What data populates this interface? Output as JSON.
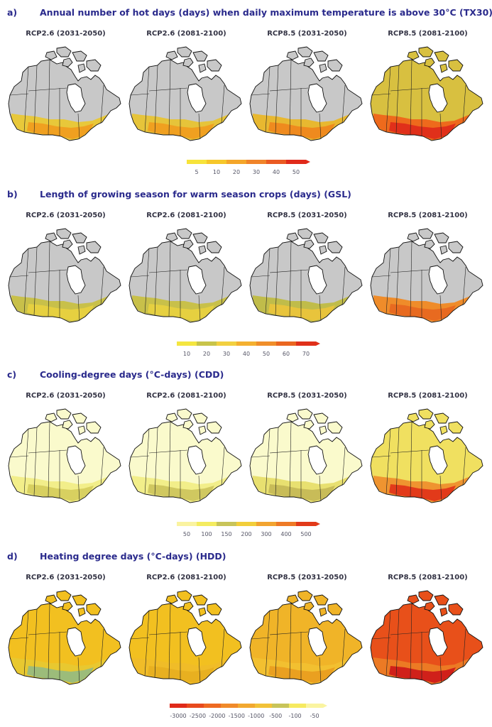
{
  "sections": [
    {
      "letter": "a)",
      "title": "Annual number of hot days (days) when daily maximum temperature is above 30°C (TX30)",
      "maps": [
        {
          "label": "RCP2.6 (2031-2050)",
          "base": "#c8c8c8",
          "south": "#e8c83a",
          "core": "#f0a020"
        },
        {
          "label": "RCP2.6 (2081-2100)",
          "base": "#c8c8c8",
          "south": "#e6c43a",
          "core": "#f0a020"
        },
        {
          "label": "RCP8.5 (2031-2050)",
          "base": "#c8c8c8",
          "south": "#e8b830",
          "core": "#ef8a1e"
        },
        {
          "label": "RCP8.5 (2081-2100)",
          "base": "#d8c040",
          "south": "#ee6a1c",
          "core": "#e0301a"
        }
      ],
      "legend": {
        "ticks": [
          "5",
          "10",
          "20",
          "30",
          "40",
          "50"
        ],
        "colors": [
          "#f7e33a",
          "#f6c72a",
          "#f4a62a",
          "#f0842a",
          "#ea5a22",
          "#e02a1a"
        ]
      }
    },
    {
      "letter": "b)",
      "title": "Length of growing season for warm season crops (days) (GSL)",
      "maps": [
        {
          "label": "RCP2.6 (2031-2050)",
          "base": "#c8c8c8",
          "south": "#c8c04a",
          "core": "#e6d040"
        },
        {
          "label": "RCP2.6 (2081-2100)",
          "base": "#c8c8c8",
          "south": "#c8c04a",
          "core": "#e6d040"
        },
        {
          "label": "RCP8.5 (2031-2050)",
          "base": "#c8c8c8",
          "south": "#c0bc4a",
          "core": "#e8c43c"
        },
        {
          "label": "RCP8.5 (2081-2100)",
          "base": "#c8c8c8",
          "south": "#ef8c2a",
          "core": "#e86a20"
        }
      ],
      "legend": {
        "ticks": [
          "10",
          "20",
          "30",
          "40",
          "50",
          "60",
          "70"
        ],
        "colors": [
          "#f4e640",
          "#c8c44a",
          "#f2d040",
          "#f4b030",
          "#f08e2a",
          "#ea6620",
          "#e0301a"
        ]
      }
    },
    {
      "letter": "c)",
      "title": "Cooling-degree days (°C-days) (CDD)",
      "maps": [
        {
          "label": "RCP2.6 (2031-2050)",
          "base": "#fafacc",
          "south": "#f2ee8a",
          "core": "#d8d060"
        },
        {
          "label": "RCP2.6 (2081-2100)",
          "base": "#fafacc",
          "south": "#f2ee8a",
          "core": "#d0c860"
        },
        {
          "label": "RCP8.5 (2031-2050)",
          "base": "#fafacc",
          "south": "#e8e070",
          "core": "#c8bc58"
        },
        {
          "label": "RCP8.5 (2081-2100)",
          "base": "#f0e060",
          "south": "#ef9430",
          "core": "#e23a1a"
        }
      ],
      "legend": {
        "ticks": [
          "50",
          "100",
          "150",
          "200",
          "300",
          "400",
          "500"
        ],
        "colors": [
          "#faf3a0",
          "#f4ec60",
          "#c8c45a",
          "#f2ce3a",
          "#f2a430",
          "#ee7a26",
          "#e23a1a"
        ]
      }
    },
    {
      "letter": "d)",
      "title": "Heating degree days (°C-days) (HDD)",
      "maps": [
        {
          "label": "RCP2.6 (2031-2050)",
          "base": "#f2c020",
          "south": "#e8c830",
          "core": "#9cbc7a"
        },
        {
          "label": "RCP2.6 (2081-2100)",
          "base": "#f2c020",
          "south": "#f0bc28",
          "core": "#e8b020"
        },
        {
          "label": "RCP8.5 (2031-2050)",
          "base": "#f0b428",
          "south": "#f2c030",
          "core": "#eaa020"
        },
        {
          "label": "RCP8.5 (2081-2100)",
          "base": "#e8501a",
          "south": "#ec7a24",
          "core": "#d0201a"
        }
      ],
      "legend": {
        "ticks": [
          "-3000",
          "-2500",
          "-2000",
          "-1500",
          "-1000",
          "-500",
          "-100",
          "-50"
        ],
        "colors": [
          "#e02a1a",
          "#e84a1e",
          "#ee6a22",
          "#f08a2a",
          "#f2a830",
          "#f2c238",
          "#c8c45a",
          "#f6ea60",
          "#faf4a0"
        ]
      }
    }
  ]
}
